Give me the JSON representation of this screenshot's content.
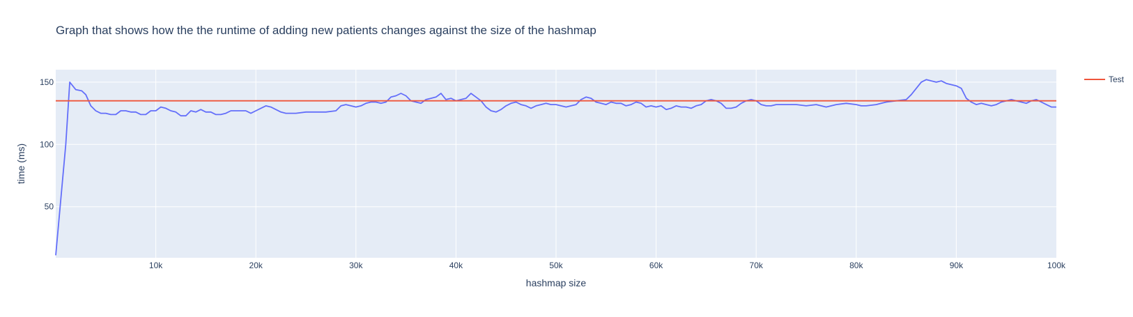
{
  "chart_data": {
    "type": "line",
    "title": "Graph that shows how the the runtime of adding new patients changes against the size of the hashmap",
    "xlabel": "hashmap size",
    "ylabel": "time (ms)",
    "xlim": [
      0,
      100000
    ],
    "ylim": [
      9,
      160
    ],
    "x_ticks": [
      10000,
      20000,
      30000,
      40000,
      50000,
      60000,
      70000,
      80000,
      90000,
      100000
    ],
    "x_tick_labels": [
      "10k",
      "20k",
      "30k",
      "40k",
      "50k",
      "60k",
      "70k",
      "80k",
      "90k",
      "100k"
    ],
    "y_ticks": [
      50,
      100,
      150
    ],
    "y_tick_labels": [
      "50",
      "100",
      "150"
    ],
    "grid": true,
    "legend_position": "top-right",
    "plot_background": "#e5ecf6",
    "series": [
      {
        "name": "",
        "color": "#636efa",
        "points": [
          [
            0,
            11
          ],
          [
            1000,
            100
          ],
          [
            1400,
            150
          ],
          [
            2000,
            144
          ],
          [
            2600,
            143
          ],
          [
            3000,
            140
          ],
          [
            3500,
            131
          ],
          [
            4000,
            127
          ],
          [
            4500,
            125
          ],
          [
            5000,
            125
          ],
          [
            5500,
            124
          ],
          [
            6000,
            124
          ],
          [
            6500,
            127
          ],
          [
            7000,
            127
          ],
          [
            7500,
            126
          ],
          [
            8000,
            126
          ],
          [
            8500,
            124
          ],
          [
            9000,
            124
          ],
          [
            9500,
            127
          ],
          [
            10000,
            127
          ],
          [
            10500,
            130
          ],
          [
            11000,
            129
          ],
          [
            11500,
            127
          ],
          [
            12000,
            126
          ],
          [
            12500,
            123
          ],
          [
            13000,
            123
          ],
          [
            13500,
            127
          ],
          [
            14000,
            126
          ],
          [
            14500,
            128
          ],
          [
            15000,
            126
          ],
          [
            15500,
            126
          ],
          [
            16000,
            124
          ],
          [
            16500,
            124
          ],
          [
            17000,
            125
          ],
          [
            17500,
            127
          ],
          [
            18000,
            127
          ],
          [
            18500,
            127
          ],
          [
            19000,
            127
          ],
          [
            19500,
            125
          ],
          [
            20000,
            127
          ],
          [
            20500,
            129
          ],
          [
            21000,
            131
          ],
          [
            21500,
            130
          ],
          [
            22000,
            128
          ],
          [
            22500,
            126
          ],
          [
            23000,
            125
          ],
          [
            24000,
            125
          ],
          [
            25000,
            126
          ],
          [
            26000,
            126
          ],
          [
            27000,
            126
          ],
          [
            28000,
            127
          ],
          [
            28500,
            131
          ],
          [
            29000,
            132
          ],
          [
            29500,
            131
          ],
          [
            30000,
            130
          ],
          [
            30500,
            131
          ],
          [
            31000,
            133
          ],
          [
            31500,
            134
          ],
          [
            32000,
            134
          ],
          [
            32500,
            133
          ],
          [
            33000,
            134
          ],
          [
            33500,
            138
          ],
          [
            34000,
            139
          ],
          [
            34500,
            141
          ],
          [
            35000,
            139
          ],
          [
            35500,
            135
          ],
          [
            36000,
            134
          ],
          [
            36500,
            133
          ],
          [
            37000,
            136
          ],
          [
            37500,
            137
          ],
          [
            38000,
            138
          ],
          [
            38500,
            141
          ],
          [
            39000,
            136
          ],
          [
            39500,
            137
          ],
          [
            40000,
            135
          ],
          [
            40500,
            136
          ],
          [
            41000,
            137
          ],
          [
            41500,
            141
          ],
          [
            42000,
            138
          ],
          [
            42500,
            135
          ],
          [
            43000,
            130
          ],
          [
            43500,
            127
          ],
          [
            44000,
            126
          ],
          [
            44500,
            128
          ],
          [
            45000,
            131
          ],
          [
            45500,
            133
          ],
          [
            46000,
            134
          ],
          [
            46500,
            132
          ],
          [
            47000,
            131
          ],
          [
            47500,
            129
          ],
          [
            48000,
            131
          ],
          [
            48500,
            132
          ],
          [
            49000,
            133
          ],
          [
            49500,
            132
          ],
          [
            50000,
            132
          ],
          [
            50500,
            131
          ],
          [
            51000,
            130
          ],
          [
            51500,
            131
          ],
          [
            52000,
            132
          ],
          [
            52500,
            136
          ],
          [
            53000,
            138
          ],
          [
            53500,
            137
          ],
          [
            54000,
            134
          ],
          [
            54500,
            133
          ],
          [
            55000,
            132
          ],
          [
            55500,
            134
          ],
          [
            56000,
            133
          ],
          [
            56500,
            133
          ],
          [
            57000,
            131
          ],
          [
            57500,
            132
          ],
          [
            58000,
            134
          ],
          [
            58500,
            133
          ],
          [
            59000,
            130
          ],
          [
            59500,
            131
          ],
          [
            60000,
            130
          ],
          [
            60500,
            131
          ],
          [
            61000,
            128
          ],
          [
            61500,
            129
          ],
          [
            62000,
            131
          ],
          [
            62500,
            130
          ],
          [
            63000,
            130
          ],
          [
            63500,
            129
          ],
          [
            64000,
            131
          ],
          [
            64500,
            132
          ],
          [
            65000,
            135
          ],
          [
            65500,
            136
          ],
          [
            66000,
            135
          ],
          [
            66500,
            133
          ],
          [
            67000,
            129
          ],
          [
            67500,
            129
          ],
          [
            68000,
            130
          ],
          [
            68500,
            133
          ],
          [
            69000,
            135
          ],
          [
            69500,
            136
          ],
          [
            70000,
            135
          ],
          [
            70500,
            132
          ],
          [
            71000,
            131
          ],
          [
            71500,
            131
          ],
          [
            72000,
            132
          ],
          [
            73000,
            132
          ],
          [
            74000,
            132
          ],
          [
            75000,
            131
          ],
          [
            76000,
            132
          ],
          [
            77000,
            130
          ],
          [
            78000,
            132
          ],
          [
            79000,
            133
          ],
          [
            80000,
            132
          ],
          [
            80500,
            131
          ],
          [
            81000,
            131
          ],
          [
            82000,
            132
          ],
          [
            82500,
            133
          ],
          [
            83000,
            134
          ],
          [
            84000,
            135
          ],
          [
            85000,
            136
          ],
          [
            85500,
            140
          ],
          [
            86000,
            145
          ],
          [
            86500,
            150
          ],
          [
            87000,
            152
          ],
          [
            87500,
            151
          ],
          [
            88000,
            150
          ],
          [
            88500,
            151
          ],
          [
            89000,
            149
          ],
          [
            89500,
            148
          ],
          [
            90000,
            147
          ],
          [
            90500,
            145
          ],
          [
            91000,
            137
          ],
          [
            91500,
            134
          ],
          [
            92000,
            132
          ],
          [
            92500,
            133
          ],
          [
            93000,
            132
          ],
          [
            93500,
            131
          ],
          [
            94000,
            132
          ],
          [
            94500,
            134
          ],
          [
            95000,
            135
          ],
          [
            95500,
            136
          ],
          [
            96000,
            135
          ],
          [
            96500,
            134
          ],
          [
            97000,
            133
          ],
          [
            97500,
            135
          ],
          [
            98000,
            136
          ],
          [
            98500,
            134
          ],
          [
            99000,
            132
          ],
          [
            99500,
            130
          ],
          [
            100000,
            130
          ]
        ]
      },
      {
        "name": "Test",
        "color": "#ef553b",
        "points": [
          [
            0,
            135
          ],
          [
            100000,
            135
          ]
        ]
      }
    ]
  }
}
